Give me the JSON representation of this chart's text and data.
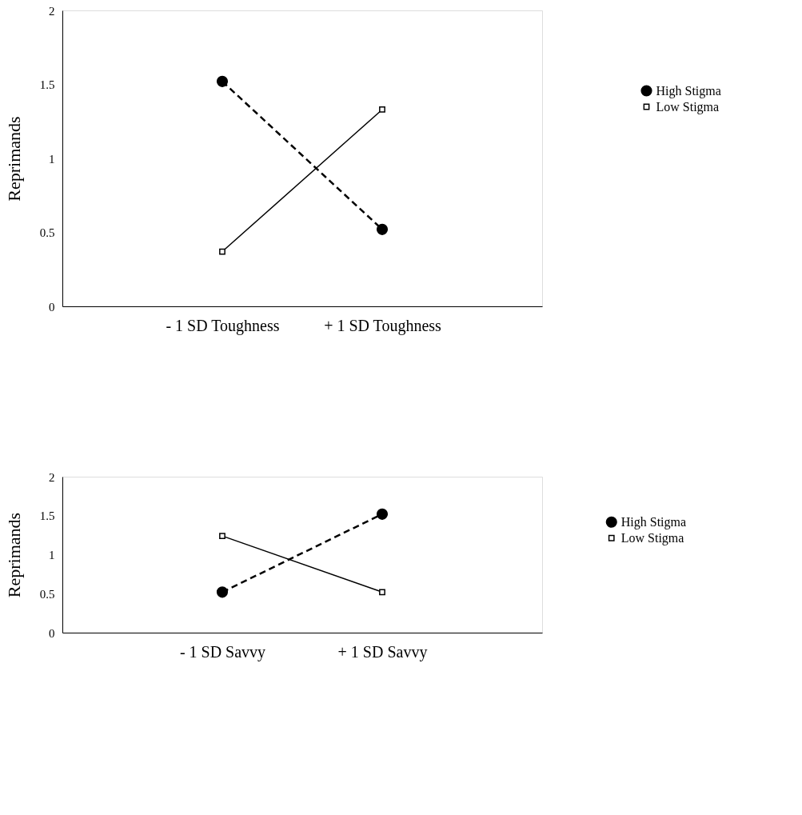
{
  "chart_data": [
    {
      "type": "line",
      "categories": [
        "- 1 SD Toughness",
        "+ 1 SD Toughness"
      ],
      "ylabel": "Reprimands",
      "ylim": [
        0,
        2
      ],
      "yticks": [
        0,
        0.5,
        1,
        1.5,
        2
      ],
      "grid": false,
      "legend": "right",
      "series": [
        {
          "name": "High Stigma",
          "color": "#000000",
          "values": [
            1.52,
            0.52
          ],
          "marker": "circle",
          "line_style": "dashed"
        },
        {
          "name": "Low Stigma",
          "color": "#000000",
          "values": [
            0.37,
            1.33
          ],
          "marker": "square",
          "line_style": "solid"
        }
      ]
    },
    {
      "type": "line",
      "categories": [
        "- 1 SD Savvy",
        "+ 1 SD Savvy"
      ],
      "ylabel": "Reprimands",
      "ylim": [
        0,
        2
      ],
      "yticks": [
        0,
        0.5,
        1,
        1.5,
        2
      ],
      "grid": false,
      "legend": "right",
      "series": [
        {
          "name": "High Stigma",
          "color": "#000000",
          "values": [
            0.52,
            1.52
          ],
          "marker": "circle",
          "line_style": "dashed"
        },
        {
          "name": "Low Stigma",
          "color": "#000000",
          "values": [
            1.24,
            0.52
          ],
          "marker": "square",
          "line_style": "solid"
        }
      ]
    }
  ]
}
